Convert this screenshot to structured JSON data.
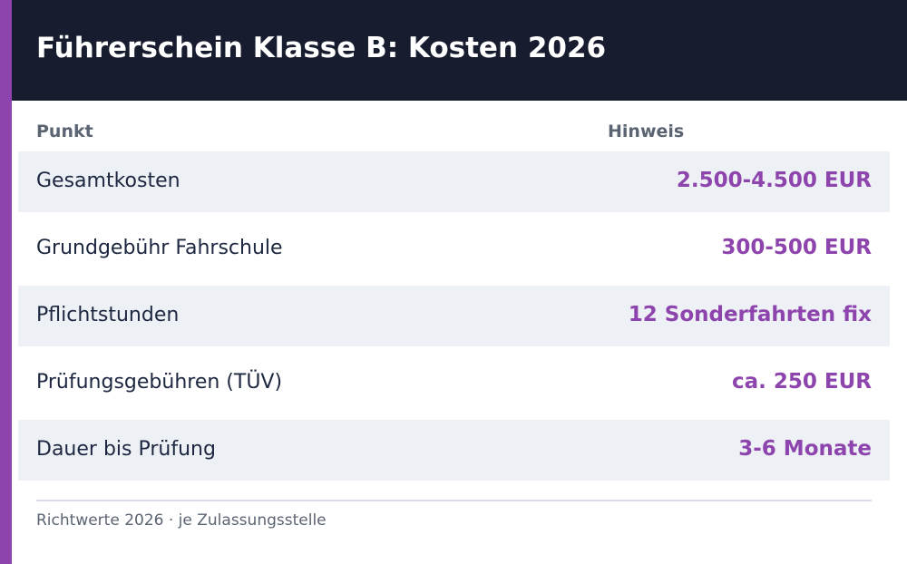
{
  "header": {
    "title": "Führerschein Klasse B: Kosten 2026"
  },
  "table": {
    "columns": {
      "left": "Punkt",
      "right": "Hinweis"
    },
    "rows": [
      {
        "label": "Gesamtkosten",
        "value": "2.500-4.500 EUR"
      },
      {
        "label": "Grundgebühr Fahrschule",
        "value": "300-500 EUR"
      },
      {
        "label": "Pflichtstunden",
        "value": "12 Sonderfahrten fix"
      },
      {
        "label": "Prüfungsgebühren (TÜV)",
        "value": "ca. 250 EUR"
      },
      {
        "label": "Dauer bis Prüfung",
        "value": "3-6 Monate"
      }
    ]
  },
  "footer": {
    "note": "Richtwerte 2026 · je Zulassungsstelle"
  },
  "colors": {
    "accent": "#8e44ad",
    "header_bg": "#171c2e",
    "row_shade": "#edf0f5",
    "label_text": "#1d2740",
    "muted_text": "#5b6472"
  }
}
